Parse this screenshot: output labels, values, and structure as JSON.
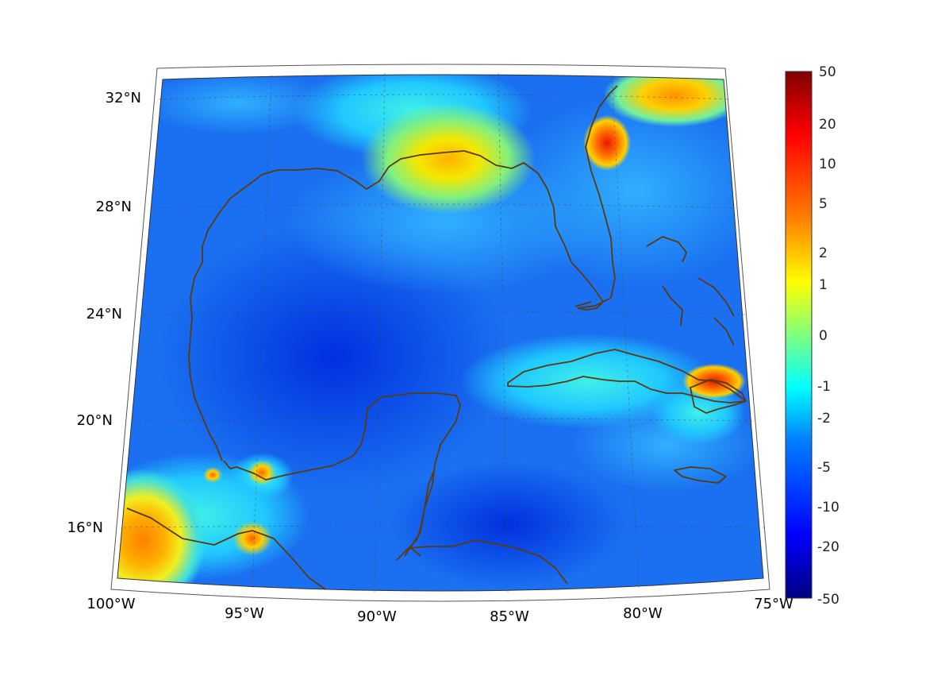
{
  "map": {
    "lon_ticks": [
      "100°W",
      "95°W",
      "90°W",
      "85°W",
      "80°W",
      "75°W"
    ],
    "lat_ticks": [
      "32°N",
      "28°N",
      "24°N",
      "20°N",
      "16°N"
    ],
    "extent": {
      "lon": [
        -100,
        -75
      ],
      "lat": [
        14,
        33
      ]
    },
    "coastline_color": "#5a3a12",
    "gridline_style": "dashed",
    "field_colormap": "jet"
  },
  "colorbar": {
    "labels": [
      "50",
      "20",
      "10",
      "5",
      "2",
      "1",
      "0",
      "-1",
      "-2",
      "-5",
      "-10",
      "-20",
      "-50"
    ],
    "colormap": [
      "#000080",
      "#0000ff",
      "#0080ff",
      "#00ffff",
      "#80ff80",
      "#ffff00",
      "#ff8000",
      "#ff0000",
      "#800000"
    ]
  }
}
